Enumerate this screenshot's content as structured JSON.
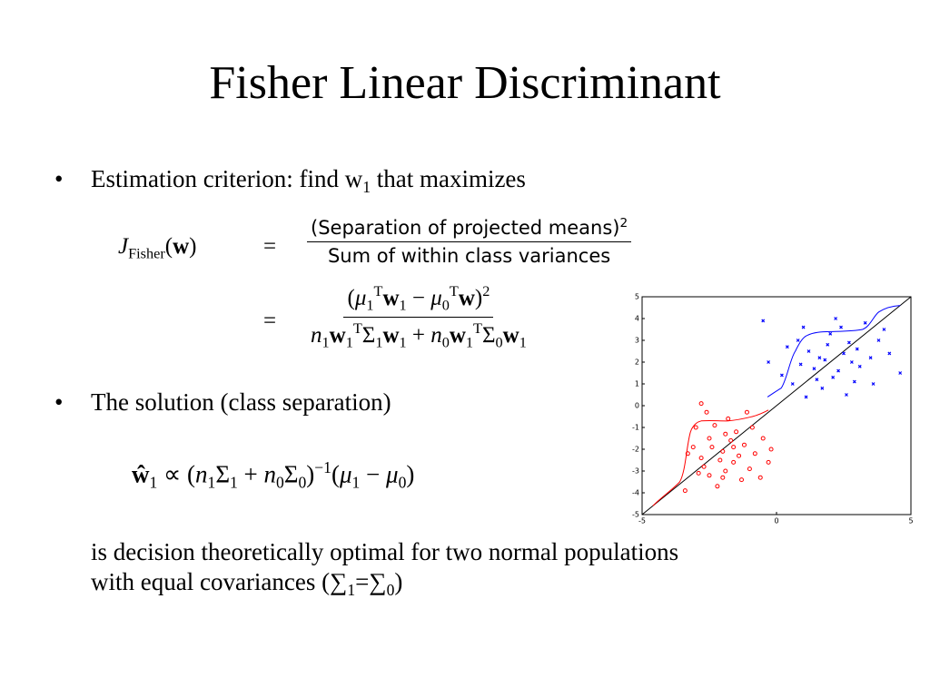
{
  "title": "Fisher Linear Discriminant",
  "bullet_1": [
    {
      "text": "Estimation criterion: find w"
    },
    {
      "sub": "1"
    },
    {
      "text": " that maximizes"
    }
  ],
  "formula_1": {
    "lhs": [
      {
        "it": "J"
      },
      {
        "sub": "Fisher"
      },
      {
        "text": "("
      },
      {
        "bold": "w"
      },
      {
        "text": ")"
      }
    ],
    "eq": "=",
    "num": [
      {
        "text": "(Separation of projected means)"
      },
      {
        "sup": "2"
      }
    ],
    "den": [
      {
        "text": "Sum of within class variances"
      }
    ]
  },
  "formula_2": {
    "eq": "=",
    "num": [
      {
        "text": "("
      },
      {
        "it": "μ"
      },
      {
        "sub": "1"
      },
      {
        "sup": "T"
      },
      {
        "bold": "w"
      },
      {
        "sub": "1"
      },
      {
        "text": " − "
      },
      {
        "it": "μ"
      },
      {
        "sub": "0"
      },
      {
        "sup": "T"
      },
      {
        "bold": "w"
      },
      {
        "text": ")"
      },
      {
        "sup": "2"
      }
    ],
    "den": [
      {
        "it": "n"
      },
      {
        "sub": "1"
      },
      {
        "bold": "w"
      },
      {
        "sub": "1"
      },
      {
        "sup": "T"
      },
      {
        "text": "Σ"
      },
      {
        "sub": "1"
      },
      {
        "bold": "w"
      },
      {
        "sub": "1"
      },
      {
        "text": " + "
      },
      {
        "it": "n"
      },
      {
        "sub": "0"
      },
      {
        "bold": "w"
      },
      {
        "sub": "1"
      },
      {
        "sup": "T"
      },
      {
        "text": "Σ"
      },
      {
        "sub": "0"
      },
      {
        "bold": "w"
      },
      {
        "sub": "1"
      }
    ]
  },
  "bullet_2": [
    {
      "text": "The solution (class separation)"
    }
  ],
  "formula_3": [
    {
      "bold": "ŵ"
    },
    {
      "sub": "1"
    },
    {
      "text": " ∝ ("
    },
    {
      "it": "n"
    },
    {
      "sub": "1"
    },
    {
      "text": "Σ"
    },
    {
      "sub": "1"
    },
    {
      "text": " + "
    },
    {
      "it": "n"
    },
    {
      "sub": "0"
    },
    {
      "text": "Σ"
    },
    {
      "sub": "0"
    },
    {
      "text": ")"
    },
    {
      "sup": "−1"
    },
    {
      "text": "("
    },
    {
      "it": "μ"
    },
    {
      "sub": "1"
    },
    {
      "text": " − "
    },
    {
      "it": "μ"
    },
    {
      "sub": "0"
    },
    {
      "text": ")"
    }
  ],
  "paragraph_line_1": [
    {
      "text": "is decision theoretically optimal for two normal populations"
    }
  ],
  "paragraph_line_2": [
    {
      "text": "with equal covariances (∑"
    },
    {
      "sub": "1"
    },
    {
      "text": "=∑"
    },
    {
      "sub": "0"
    },
    {
      "text": ")"
    }
  ],
  "plot": {
    "xlim": [
      -5,
      5
    ],
    "ylim": [
      -5,
      5
    ],
    "xticks": [
      -5,
      0,
      5
    ],
    "yticks": [
      -5,
      -4,
      -3,
      -2,
      -1,
      0,
      1,
      2,
      3,
      4,
      5
    ],
    "series": [
      {
        "color": "#0000ff",
        "marker": "x",
        "x": [
          1.8,
          2.3,
          1.2,
          2.7,
          3.1,
          1.5,
          2.0,
          0.9,
          2.5,
          3.5,
          1.7,
          2.9,
          0.4,
          1.0,
          2.2,
          3.8,
          4.2,
          1.4,
          2.6,
          0.6,
          3.3,
          1.9,
          -0.5,
          -0.3,
          4.6,
          2.1,
          1.1,
          3.0,
          2.4,
          0.2,
          3.6,
          1.6,
          2.8,
          0.8,
          4.0
        ],
        "y": [
          2.1,
          1.6,
          2.5,
          2.9,
          1.8,
          1.2,
          3.3,
          1.9,
          2.4,
          2.2,
          0.8,
          1.1,
          2.7,
          3.6,
          4.0,
          3.0,
          2.4,
          1.7,
          0.5,
          1.0,
          3.8,
          2.8,
          3.9,
          2.0,
          1.5,
          1.3,
          0.4,
          2.6,
          3.6,
          1.4,
          1.0,
          2.2,
          2.0,
          3.0,
          3.5
        ]
      },
      {
        "color": "#ff0000",
        "marker": "o",
        "x": [
          -2.0,
          -1.6,
          -2.5,
          -1.2,
          -2.8,
          -1.9,
          -2.3,
          -0.8,
          -1.5,
          -2.9,
          -1.0,
          -2.1,
          -3.1,
          -1.7,
          -0.5,
          -2.6,
          -1.3,
          -2.2,
          -3.0,
          -0.3,
          -1.8,
          -2.7,
          -1.4,
          -0.9,
          -2.4,
          -3.3,
          -1.1,
          -2.0,
          -0.2,
          -2.8,
          -1.6,
          -0.6,
          -3.4,
          -2.5,
          -1.9
        ],
        "y": [
          -2.1,
          -2.6,
          -1.5,
          -1.8,
          -2.4,
          -3.0,
          -0.9,
          -2.2,
          -1.2,
          -3.1,
          -2.9,
          -2.5,
          -1.9,
          -1.6,
          -1.5,
          -0.3,
          -3.4,
          -3.7,
          -1.0,
          -2.6,
          -0.6,
          -2.8,
          -2.3,
          -1.0,
          -1.9,
          -2.2,
          -0.3,
          -3.3,
          -2.0,
          0.1,
          -1.9,
          -3.3,
          -3.9,
          -3.2,
          -1.3
        ]
      }
    ]
  }
}
